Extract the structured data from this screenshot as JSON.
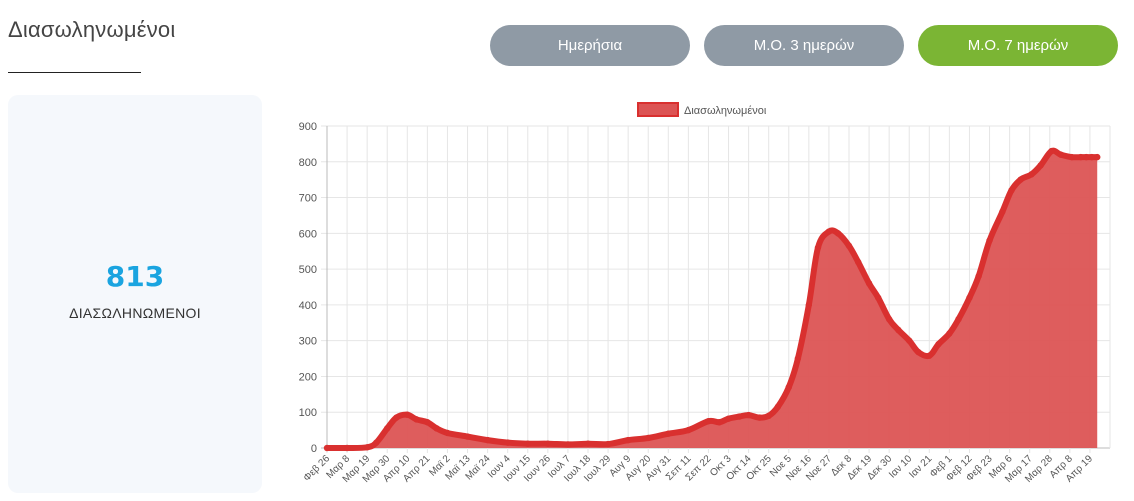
{
  "header": {
    "title": "Διασωληνωμένοι"
  },
  "buttons": [
    {
      "label": "Ημερήσια",
      "active": false
    },
    {
      "label": "Μ.Ο. 3 ημερών",
      "active": false
    },
    {
      "label": "Μ.Ο. 7 ημερών",
      "active": true
    }
  ],
  "stat": {
    "value": "813",
    "label": "ΔΙΑΣΩΛΗΝΩΜΕΝΟΙ"
  },
  "colors": {
    "accent_blue": "#1aa4e0",
    "active_green": "#7bb534",
    "inactive_gray": "#8f9aa5",
    "series_fill": "#dc5454",
    "series_line": "#d9302f"
  },
  "chart_data": {
    "type": "area",
    "title": "",
    "xlabel": "",
    "ylabel": "",
    "ylim": [
      0,
      900
    ],
    "yticks": [
      0,
      100,
      200,
      300,
      400,
      500,
      600,
      700,
      800,
      900
    ],
    "grid": true,
    "legend_position": "top-center",
    "x_tick_labels": [
      "Φεβ 26",
      "Μαρ 8",
      "Μαρ 19",
      "Μαρ 30",
      "Απρ 10",
      "Απρ 21",
      "Μαϊ 2",
      "Μαϊ 13",
      "Μαϊ 24",
      "Ιουν 4",
      "Ιουν 15",
      "Ιουν 26",
      "Ιουλ 7",
      "Ιουλ 18",
      "Ιουλ 29",
      "Αυγ 9",
      "Αυγ 20",
      "Αυγ 31",
      "Σεπ 11",
      "Σεπ 22",
      "Οκτ 3",
      "Οκτ 14",
      "Οκτ 25",
      "Νοε 5",
      "Νοε 16",
      "Νοε 27",
      "Δεκ 8",
      "Δεκ 19",
      "Δεκ 30",
      "Ιαν 10",
      "Ιαν 21",
      "Φεβ 1",
      "Φεβ 12",
      "Φεβ 23",
      "Μαρ 6",
      "Μαρ 17",
      "Μαρ 28",
      "Απρ 8",
      "Απρ 19"
    ],
    "series": [
      {
        "name": "Διασωληνωμένοι",
        "x": [
          "Φεβ 26",
          "Μαρ 8",
          "Μαρ 19",
          "Μαρ 24",
          "Μαρ 30",
          "Απρ 4",
          "Απρ 10",
          "Απρ 15",
          "Απρ 21",
          "Απρ 26",
          "Μαϊ 2",
          "Μαϊ 13",
          "Μαϊ 24",
          "Ιουν 4",
          "Ιουν 15",
          "Ιουν 26",
          "Ιουλ 7",
          "Ιουλ 18",
          "Ιουλ 29",
          "Αυγ 9",
          "Αυγ 20",
          "Αυγ 31",
          "Σεπ 11",
          "Σεπ 22",
          "Σεπ 28",
          "Οκτ 3",
          "Οκτ 9",
          "Οκτ 14",
          "Οκτ 20",
          "Οκτ 25",
          "Οκτ 30",
          "Νοε 5",
          "Νοε 10",
          "Νοε 16",
          "Νοε 21",
          "Νοε 27",
          "Δεκ 2",
          "Δεκ 8",
          "Δεκ 13",
          "Δεκ 19",
          "Δεκ 24",
          "Δεκ 30",
          "Ιαν 4",
          "Ιαν 10",
          "Ιαν 15",
          "Ιαν 21",
          "Ιαν 26",
          "Φεβ 1",
          "Φεβ 6",
          "Φεβ 12",
          "Φεβ 17",
          "Φεβ 23",
          "Μαρ 1",
          "Μαρ 6",
          "Μαρ 11",
          "Μαρ 17",
          "Μαρ 22",
          "Μαρ 28",
          "Απρ 2",
          "Απρ 8",
          "Απρ 13",
          "Απρ 16",
          "Απρ 19",
          "Απρ 22"
        ],
        "values": [
          0,
          0,
          2,
          15,
          55,
          85,
          93,
          80,
          72,
          55,
          42,
          32,
          22,
          15,
          12,
          12,
          10,
          12,
          11,
          22,
          28,
          40,
          50,
          75,
          72,
          82,
          88,
          92,
          85,
          90,
          115,
          170,
          250,
          400,
          560,
          605,
          600,
          565,
          520,
          460,
          420,
          360,
          330,
          300,
          268,
          258,
          290,
          320,
          360,
          420,
          480,
          580,
          660,
          720,
          750,
          765,
          790,
          830,
          820,
          813,
          813,
          813,
          813,
          813
        ]
      }
    ]
  }
}
